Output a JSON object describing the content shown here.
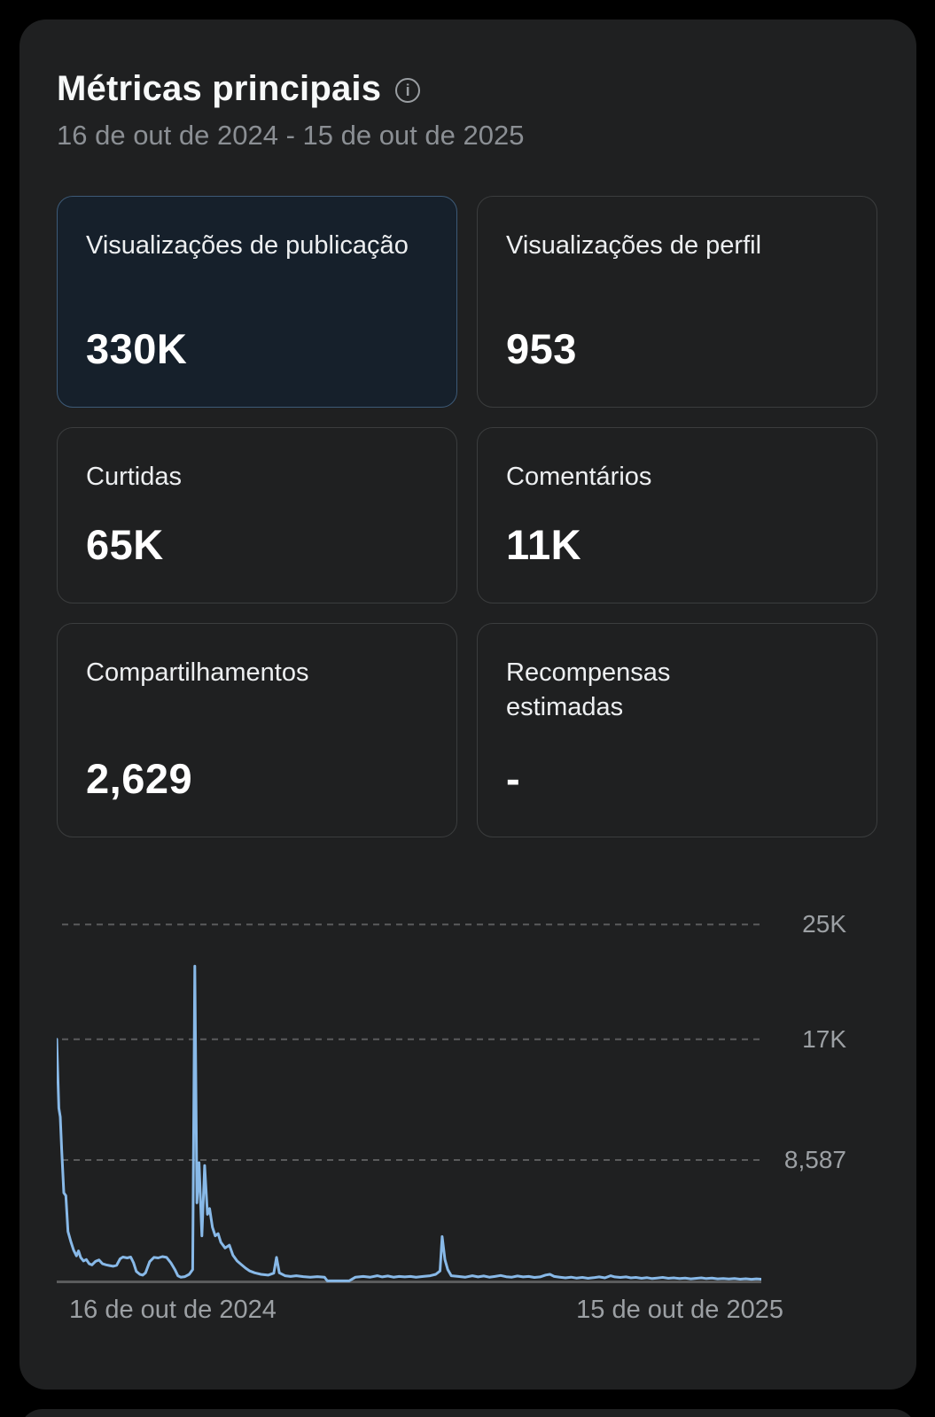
{
  "header": {
    "title": "Métricas principais",
    "date_range": "16 de out de 2024 - 15 de out de 2025"
  },
  "cards": [
    {
      "label": "Visualizações de publicação",
      "value": "330K",
      "selected": true
    },
    {
      "label": "Visualizações de perfil",
      "value": "953",
      "selected": false
    },
    {
      "label": "Curtidas",
      "value": "65K",
      "selected": false
    },
    {
      "label": "Comentários",
      "value": "11K",
      "selected": false
    },
    {
      "label": "Compartilhamentos",
      "value": "2,629",
      "selected": false
    },
    {
      "label": "Recompensas estimadas",
      "value": "-",
      "selected": false
    }
  ],
  "colors": {
    "background": "#000000",
    "panel": "#1f2021",
    "card_border": "#3b3d3e",
    "selected_card_background": "#16202b",
    "selected_card_border": "#3d5a77",
    "accent_line": "#88b9e8",
    "gridline": "#5a5b5c",
    "baseline": "#5a5b5c",
    "axis_text": "#9ca0a4",
    "title_text": "#f7f9f9",
    "muted_text": "#8b8f94"
  },
  "chart_data": {
    "type": "line",
    "grid": "dashed-horizontal",
    "legend": "none",
    "x_axis_labels": [
      "16 de out de 2024",
      "15 de out de 2025"
    ],
    "y_gridlines": [
      {
        "value": 25000,
        "label": "25K"
      },
      {
        "value": 17000,
        "label": "17K"
      },
      {
        "value": 8587,
        "label": "8,587"
      }
    ],
    "ylim": [
      0,
      28100
    ],
    "series": [
      {
        "name": "Visualizações de publicação",
        "points": [
          [
            0.0,
            17000
          ],
          [
            0.003,
            12200
          ],
          [
            0.005,
            11600
          ],
          [
            0.007,
            9300
          ],
          [
            0.01,
            6300
          ],
          [
            0.013,
            6100
          ],
          [
            0.016,
            3600
          ],
          [
            0.02,
            2900
          ],
          [
            0.024,
            2300
          ],
          [
            0.028,
            1900
          ],
          [
            0.031,
            2250
          ],
          [
            0.034,
            1800
          ],
          [
            0.038,
            1550
          ],
          [
            0.042,
            1650
          ],
          [
            0.046,
            1350
          ],
          [
            0.05,
            1280
          ],
          [
            0.055,
            1520
          ],
          [
            0.06,
            1620
          ],
          [
            0.065,
            1350
          ],
          [
            0.07,
            1280
          ],
          [
            0.075,
            1230
          ],
          [
            0.08,
            1180
          ],
          [
            0.085,
            1250
          ],
          [
            0.09,
            1700
          ],
          [
            0.094,
            1820
          ],
          [
            0.1,
            1760
          ],
          [
            0.105,
            1820
          ],
          [
            0.109,
            1420
          ],
          [
            0.113,
            820
          ],
          [
            0.118,
            620
          ],
          [
            0.122,
            560
          ],
          [
            0.126,
            720
          ],
          [
            0.132,
            1500
          ],
          [
            0.138,
            1800
          ],
          [
            0.144,
            1760
          ],
          [
            0.15,
            1850
          ],
          [
            0.156,
            1800
          ],
          [
            0.162,
            1420
          ],
          [
            0.168,
            920
          ],
          [
            0.172,
            520
          ],
          [
            0.176,
            420
          ],
          [
            0.182,
            460
          ],
          [
            0.188,
            620
          ],
          [
            0.193,
            950
          ],
          [
            0.196,
            22100
          ],
          [
            0.199,
            5600
          ],
          [
            0.202,
            8400
          ],
          [
            0.206,
            3300
          ],
          [
            0.21,
            8200
          ],
          [
            0.214,
            4800
          ],
          [
            0.217,
            5200
          ],
          [
            0.221,
            3900
          ],
          [
            0.225,
            3300
          ],
          [
            0.229,
            3450
          ],
          [
            0.233,
            2850
          ],
          [
            0.239,
            2450
          ],
          [
            0.245,
            2650
          ],
          [
            0.25,
            1950
          ],
          [
            0.256,
            1550
          ],
          [
            0.262,
            1300
          ],
          [
            0.268,
            1050
          ],
          [
            0.274,
            850
          ],
          [
            0.281,
            720
          ],
          [
            0.29,
            620
          ],
          [
            0.3,
            560
          ],
          [
            0.308,
            700
          ],
          [
            0.312,
            1800
          ],
          [
            0.316,
            720
          ],
          [
            0.324,
            520
          ],
          [
            0.332,
            470
          ],
          [
            0.34,
            520
          ],
          [
            0.35,
            460
          ],
          [
            0.36,
            420
          ],
          [
            0.37,
            460
          ],
          [
            0.38,
            420
          ],
          [
            0.384,
            160
          ],
          [
            0.395,
            160
          ],
          [
            0.405,
            160
          ],
          [
            0.415,
            160
          ],
          [
            0.424,
            420
          ],
          [
            0.435,
            470
          ],
          [
            0.445,
            420
          ],
          [
            0.455,
            520
          ],
          [
            0.462,
            440
          ],
          [
            0.47,
            500
          ],
          [
            0.478,
            420
          ],
          [
            0.486,
            470
          ],
          [
            0.494,
            440
          ],
          [
            0.502,
            470
          ],
          [
            0.51,
            420
          ],
          [
            0.52,
            470
          ],
          [
            0.53,
            520
          ],
          [
            0.538,
            620
          ],
          [
            0.544,
            850
          ],
          [
            0.547,
            3250
          ],
          [
            0.551,
            1650
          ],
          [
            0.555,
            950
          ],
          [
            0.56,
            520
          ],
          [
            0.57,
            470
          ],
          [
            0.58,
            420
          ],
          [
            0.59,
            520
          ],
          [
            0.598,
            440
          ],
          [
            0.606,
            500
          ],
          [
            0.614,
            420
          ],
          [
            0.622,
            470
          ],
          [
            0.63,
            540
          ],
          [
            0.638,
            450
          ],
          [
            0.646,
            420
          ],
          [
            0.654,
            500
          ],
          [
            0.662,
            440
          ],
          [
            0.67,
            470
          ],
          [
            0.678,
            400
          ],
          [
            0.686,
            440
          ],
          [
            0.694,
            570
          ],
          [
            0.7,
            620
          ],
          [
            0.706,
            470
          ],
          [
            0.714,
            420
          ],
          [
            0.722,
            370
          ],
          [
            0.73,
            420
          ],
          [
            0.738,
            350
          ],
          [
            0.746,
            400
          ],
          [
            0.754,
            340
          ],
          [
            0.762,
            380
          ],
          [
            0.77,
            440
          ],
          [
            0.778,
            370
          ],
          [
            0.786,
            520
          ],
          [
            0.792,
            440
          ],
          [
            0.8,
            400
          ],
          [
            0.808,
            440
          ],
          [
            0.815,
            370
          ],
          [
            0.822,
            400
          ],
          [
            0.83,
            340
          ],
          [
            0.838,
            380
          ],
          [
            0.845,
            320
          ],
          [
            0.852,
            360
          ],
          [
            0.86,
            400
          ],
          [
            0.868,
            340
          ],
          [
            0.876,
            370
          ],
          [
            0.884,
            320
          ],
          [
            0.892,
            350
          ],
          [
            0.9,
            300
          ],
          [
            0.908,
            340
          ],
          [
            0.915,
            370
          ],
          [
            0.922,
            320
          ],
          [
            0.93,
            350
          ],
          [
            0.938,
            300
          ],
          [
            0.946,
            330
          ],
          [
            0.954,
            290
          ],
          [
            0.962,
            320
          ],
          [
            0.97,
            280
          ],
          [
            0.978,
            310
          ],
          [
            0.986,
            270
          ],
          [
            0.993,
            300
          ],
          [
            1.0,
            280
          ]
        ]
      }
    ]
  }
}
